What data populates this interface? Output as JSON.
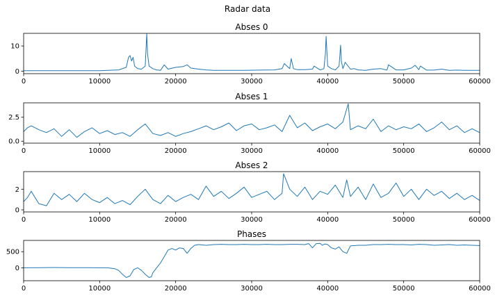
{
  "figure_title": "Radar data",
  "chart_data": [
    {
      "type": "line",
      "title": "Abses 0",
      "xlabel": "",
      "ylabel": "",
      "xlim": [
        0,
        60000
      ],
      "ylim": [
        -1,
        15
      ],
      "xticks": [
        0,
        10000,
        20000,
        30000,
        40000,
        50000,
        60000
      ],
      "yticks": [
        0,
        10
      ],
      "grid": false,
      "color": "#1f77b4",
      "series": [
        {
          "x": [
            0,
            5000,
            10000,
            12500,
            13500,
            13800,
            14000,
            14200,
            14400,
            14600,
            15000,
            15500,
            16000,
            16200,
            16300,
            16500,
            17000,
            17500,
            18000,
            18500,
            19000,
            20000,
            21000,
            21500,
            22000,
            23000,
            24000,
            25000,
            27000,
            29000,
            31000,
            33000,
            34000,
            34300,
            35000,
            35200,
            35500,
            36000,
            37000,
            38000,
            38200,
            39000,
            39500,
            39700,
            39800,
            40000,
            40500,
            41000,
            41500,
            41700,
            41800,
            42000,
            42300,
            43000,
            43500,
            44000,
            45000,
            46000,
            47000,
            47800,
            48000,
            49000,
            50000,
            51000,
            51500,
            52000,
            52200,
            53000,
            54000,
            55000,
            56000,
            57000,
            58000,
            59000,
            60000
          ],
          "y": [
            0.2,
            0.2,
            0.2,
            0.5,
            1.5,
            5.5,
            6.2,
            4.0,
            5.5,
            2.0,
            1.0,
            0.8,
            2.0,
            14.8,
            7.0,
            2.0,
            1.0,
            0.5,
            0.3,
            2.5,
            0.8,
            1.5,
            1.8,
            2.5,
            1.2,
            0.8,
            0.5,
            0.3,
            0.3,
            0.3,
            0.4,
            0.5,
            1.0,
            3.0,
            1.0,
            5.0,
            1.0,
            0.6,
            0.6,
            0.8,
            2.0,
            0.5,
            1.0,
            7.0,
            13.8,
            2.0,
            1.0,
            0.5,
            2.0,
            10.3,
            4.0,
            1.0,
            3.5,
            0.8,
            1.0,
            0.5,
            0.3,
            0.8,
            1.0,
            0.4,
            2.5,
            0.5,
            0.5,
            1.2,
            2.3,
            0.6,
            2.0,
            0.4,
            0.4,
            0.8,
            0.3,
            0.4,
            0.3,
            0.3,
            0.3
          ]
        }
      ]
    },
    {
      "type": "line",
      "title": "Abses 1",
      "xlabel": "",
      "ylabel": "",
      "xlim": [
        0,
        60000
      ],
      "ylim": [
        -0.2,
        4.0
      ],
      "xticks": [
        0,
        10000,
        20000,
        30000,
        40000,
        50000,
        60000
      ],
      "yticks": [
        0.0,
        2.5
      ],
      "ytick_labels": [
        "0.0",
        "2.5"
      ],
      "grid": false,
      "color": "#1f77b4",
      "series": [
        {
          "x": [
            0,
            500,
            1000,
            2000,
            3000,
            4000,
            5000,
            6000,
            7000,
            8000,
            9000,
            10000,
            11000,
            12000,
            13000,
            14000,
            15000,
            16000,
            17000,
            18000,
            19000,
            20000,
            21000,
            22000,
            23000,
            24000,
            25000,
            26000,
            27000,
            28000,
            29000,
            30000,
            31000,
            32000,
            33000,
            34000,
            35000,
            36000,
            37000,
            38000,
            39000,
            40000,
            41000,
            42000,
            42700,
            43000,
            44000,
            45000,
            46000,
            47000,
            48000,
            49000,
            50000,
            51000,
            52000,
            53000,
            54000,
            55000,
            56000,
            57000,
            58000,
            59000,
            60000
          ],
          "y": [
            1.0,
            1.4,
            1.6,
            1.2,
            0.9,
            1.3,
            0.5,
            1.2,
            0.4,
            1.0,
            1.4,
            0.8,
            1.1,
            0.7,
            0.9,
            0.5,
            1.2,
            1.8,
            0.8,
            0.6,
            0.9,
            0.5,
            0.8,
            1.0,
            1.3,
            1.6,
            1.2,
            1.5,
            1.9,
            1.1,
            1.6,
            1.8,
            1.2,
            1.4,
            1.7,
            1.0,
            2.7,
            1.4,
            1.9,
            1.1,
            1.5,
            1.8,
            1.3,
            2.0,
            3.9,
            1.2,
            1.6,
            1.3,
            2.3,
            1.0,
            1.6,
            1.2,
            1.5,
            1.3,
            1.8,
            1.0,
            1.4,
            2.0,
            1.2,
            1.6,
            0.9,
            1.3,
            0.9
          ]
        }
      ]
    },
    {
      "type": "line",
      "title": "Abses 2",
      "xlabel": "",
      "ylabel": "",
      "xlim": [
        0,
        60000
      ],
      "ylim": [
        -0.2,
        3.7
      ],
      "xticks": [
        0,
        10000,
        20000,
        30000,
        40000,
        50000,
        60000
      ],
      "yticks": [
        0,
        2
      ],
      "grid": false,
      "color": "#1f77b4",
      "series": [
        {
          "x": [
            0,
            500,
            1000,
            2000,
            3000,
            4000,
            5000,
            6000,
            7000,
            8000,
            9000,
            10000,
            11000,
            12000,
            13000,
            14000,
            15000,
            16000,
            17000,
            18000,
            19000,
            20000,
            21000,
            22000,
            23000,
            24000,
            25000,
            26000,
            27000,
            28000,
            29000,
            30000,
            31000,
            32000,
            33000,
            34000,
            34200,
            35000,
            36000,
            37000,
            38000,
            39000,
            40000,
            41000,
            42000,
            42500,
            43000,
            44000,
            45000,
            46000,
            47000,
            48000,
            49000,
            50000,
            51000,
            52000,
            53000,
            54000,
            55000,
            56000,
            57000,
            58000,
            59000,
            60000
          ],
          "y": [
            0.8,
            1.2,
            1.8,
            0.6,
            0.4,
            1.6,
            1.0,
            1.5,
            0.8,
            1.6,
            1.0,
            0.7,
            1.2,
            0.6,
            0.9,
            0.5,
            1.3,
            2.0,
            1.0,
            0.6,
            1.4,
            0.8,
            1.2,
            1.5,
            1.0,
            2.3,
            1.3,
            1.8,
            1.1,
            1.6,
            2.2,
            1.2,
            1.5,
            1.8,
            1.0,
            1.6,
            3.5,
            2.0,
            1.3,
            2.2,
            1.0,
            1.8,
            1.5,
            2.4,
            1.2,
            2.9,
            1.3,
            2.2,
            1.0,
            2.5,
            1.2,
            1.6,
            2.6,
            1.3,
            2.0,
            1.0,
            2.0,
            1.4,
            1.8,
            1.1,
            1.6,
            1.0,
            1.4,
            0.9
          ]
        }
      ]
    },
    {
      "type": "line",
      "title": "Phases",
      "xlabel": "",
      "ylabel": "",
      "xlim": [
        0,
        60000
      ],
      "ylim": [
        -400,
        850
      ],
      "xticks": [
        0,
        10000,
        20000,
        30000,
        40000,
        50000,
        60000
      ],
      "yticks": [
        0,
        500
      ],
      "grid": false,
      "color": "#1f77b4",
      "series": [
        {
          "x": [
            0,
            2000,
            4000,
            6000,
            8000,
            10000,
            11000,
            12000,
            12500,
            13000,
            13500,
            14000,
            14500,
            15000,
            15500,
            16000,
            16500,
            16800,
            17000,
            17500,
            18000,
            18500,
            19000,
            19500,
            20000,
            20500,
            21000,
            21500,
            22000,
            22500,
            23000,
            24000,
            25000,
            26000,
            27000,
            28000,
            29000,
            30000,
            31000,
            32000,
            33000,
            34000,
            35000,
            36000,
            37000,
            37500,
            38000,
            38500,
            39000,
            39300,
            39600,
            40000,
            40500,
            41000,
            41500,
            42000,
            42500,
            43000,
            44000,
            45000,
            46000,
            47000,
            48000,
            49000,
            50000,
            51000,
            52000,
            53000,
            54000,
            55000,
            56000,
            57000,
            58000,
            59000,
            60000
          ],
          "y": [
            0,
            5,
            10,
            5,
            5,
            0,
            0,
            -30,
            -80,
            -200,
            -300,
            -250,
            -50,
            0,
            -80,
            -200,
            -300,
            -280,
            -150,
            0,
            150,
            350,
            550,
            600,
            550,
            620,
            600,
            450,
            600,
            700,
            720,
            700,
            720,
            730,
            720,
            720,
            730,
            720,
            720,
            730,
            720,
            720,
            730,
            730,
            720,
            750,
            620,
            750,
            760,
            700,
            740,
            720,
            620,
            580,
            650,
            500,
            450,
            680,
            700,
            700,
            720,
            720,
            730,
            720,
            720,
            710,
            730,
            720,
            700,
            710,
            720,
            700,
            710,
            700,
            690
          ]
        }
      ]
    }
  ]
}
